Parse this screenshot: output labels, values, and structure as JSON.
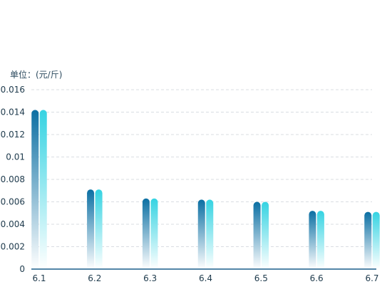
{
  "chart_data": {
    "type": "bar",
    "unit_label": "单位：(元/斤)",
    "categories": [
      "6.1",
      "6.2",
      "6.3",
      "6.4",
      "6.5",
      "6.6",
      "6.7"
    ],
    "series": [
      {
        "values": [
          0.0142,
          0.0071,
          0.0063,
          0.0062,
          0.006,
          0.0052,
          0.0051
        ],
        "color_top": "#0b6fa3",
        "color_bottom": "#ffffff"
      },
      {
        "values": [
          0.0142,
          0.0071,
          0.0063,
          0.0062,
          0.006,
          0.0052,
          0.0051
        ],
        "color_top": "#35d3e2",
        "color_bottom": "#ffffff"
      }
    ],
    "y_ticks": [
      "0",
      "0.002",
      "0.004",
      "0.006",
      "0.008",
      "0.01",
      "0.012",
      "0.014",
      "0.016"
    ],
    "ylim": [
      0,
      0.016
    ],
    "grid": true
  }
}
